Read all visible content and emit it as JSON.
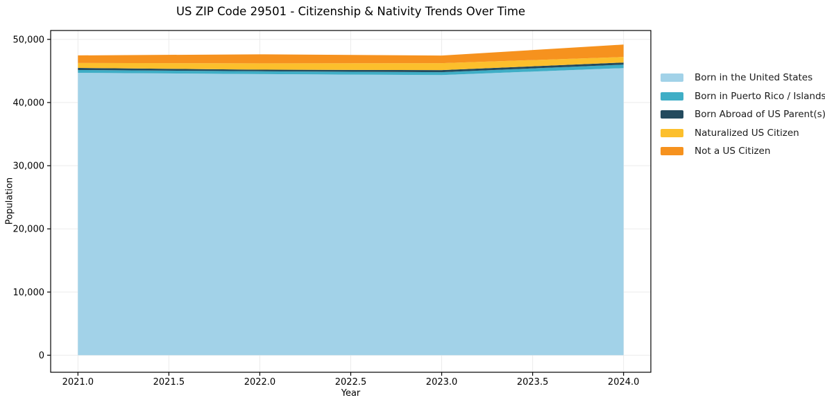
{
  "title": "US ZIP Code 29501 - Citizenship & Nativity Trends Over Time",
  "chart_data": {
    "type": "area",
    "stacked": true,
    "title": "US ZIP Code 29501 - Citizenship & Nativity Trends Over Time",
    "xlabel": "Year",
    "ylabel": "Population",
    "x": [
      2021,
      2022,
      2023,
      2024
    ],
    "series": [
      {
        "name": "Born in the United States",
        "color": "#A2D2E8",
        "values": [
          44700,
          44500,
          44350,
          45450
        ]
      },
      {
        "name": "Born in Puerto Rico / Islands",
        "color": "#3FAEC6",
        "values": [
          450,
          450,
          450,
          550
        ]
      },
      {
        "name": "Born Abroad of US Parent(s)",
        "color": "#234A5E",
        "values": [
          330,
          250,
          330,
          330
        ]
      },
      {
        "name": "Naturalized US Citizen",
        "color": "#FCBF2C",
        "values": [
          780,
          1000,
          1100,
          880
        ]
      },
      {
        "name": "Not a US Citizen",
        "color": "#F6921E",
        "values": [
          1200,
          1430,
          1210,
          1970
        ]
      }
    ],
    "totals": [
      47460,
      47630,
      47440,
      49180
    ],
    "xlim": [
      2020.85,
      2024.15
    ],
    "ylim": [
      -2700,
      51400
    ],
    "xticks": [
      2021.0,
      2021.5,
      2022.0,
      2022.5,
      2023.0,
      2023.5,
      2024.0
    ],
    "xtick_labels": [
      "2021.0",
      "2021.5",
      "2022.0",
      "2022.5",
      "2023.0",
      "2023.5",
      "2024.0"
    ],
    "yticks": [
      0,
      10000,
      20000,
      30000,
      40000,
      50000
    ],
    "ytick_labels": [
      "0",
      "10,000",
      "20,000",
      "30,000",
      "40,000",
      "50,000"
    ],
    "grid": true,
    "grid_color": "#ebebeb",
    "spine_color": "#000000",
    "legend_position": "right-outside",
    "legend_frame": false
  }
}
